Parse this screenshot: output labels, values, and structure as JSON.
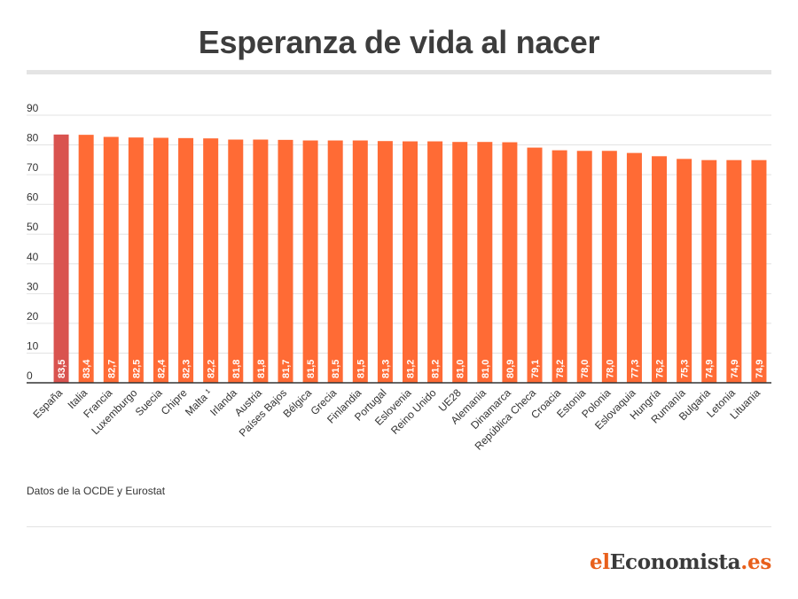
{
  "chart_data": {
    "type": "bar",
    "title": "Esperanza de vida al nacer",
    "xlabel": "",
    "ylabel": "",
    "ylim": [
      0,
      90
    ],
    "yticks": [
      0,
      10,
      20,
      30,
      40,
      50,
      60,
      70,
      80,
      90
    ],
    "grid": true,
    "legend": "none",
    "categories": [
      "España",
      "Italia",
      "Francia",
      "Luxemburgo",
      "Suecia",
      "Chipre",
      "Malta ¹",
      "Irlanda",
      "Austria",
      "Países Bajos",
      "Bélgica",
      "Grecia",
      "Finlandia",
      "Portugal",
      "Eslovenia",
      "Reino Unido",
      "UE28",
      "Alemania",
      "Dinamarca",
      "República Checa",
      "Croacia",
      "Estonia",
      "Polonia",
      "Eslovaquia",
      "Hungría",
      "Rumanía",
      "Bulgaria",
      "Letonia",
      "Lituania"
    ],
    "values": [
      83.5,
      83.4,
      82.7,
      82.5,
      82.4,
      82.3,
      82.2,
      81.8,
      81.8,
      81.7,
      81.5,
      81.5,
      81.5,
      81.3,
      81.2,
      81.2,
      81.0,
      81.0,
      80.9,
      79.1,
      78.2,
      78.0,
      78.0,
      77.3,
      76.2,
      75.3,
      74.9,
      74.9,
      74.9
    ],
    "value_labels": [
      "83,5",
      "83,4",
      "82,7",
      "82,5",
      "82,4",
      "82,3",
      "82,2",
      "81,8",
      "81,8",
      "81,7",
      "81,5",
      "81,5",
      "81,5",
      "81,3",
      "81,2",
      "81,2",
      "81,0",
      "81,0",
      "80,9",
      "79,1",
      "78,2",
      "78,0",
      "78,0",
      "77,3",
      "76,2",
      "75,3",
      "74,9",
      "74,9",
      "74,9"
    ],
    "highlight_index": 0,
    "colors": {
      "bar": "#ff6b35",
      "highlight": "#d9534f",
      "grid": "#e3e3e3",
      "axis": "#333333"
    }
  },
  "source": "Datos de la OCDE y Eurostat",
  "brand": {
    "part_a": "el",
    "part_b": "Economista",
    "part_c": ".es"
  }
}
